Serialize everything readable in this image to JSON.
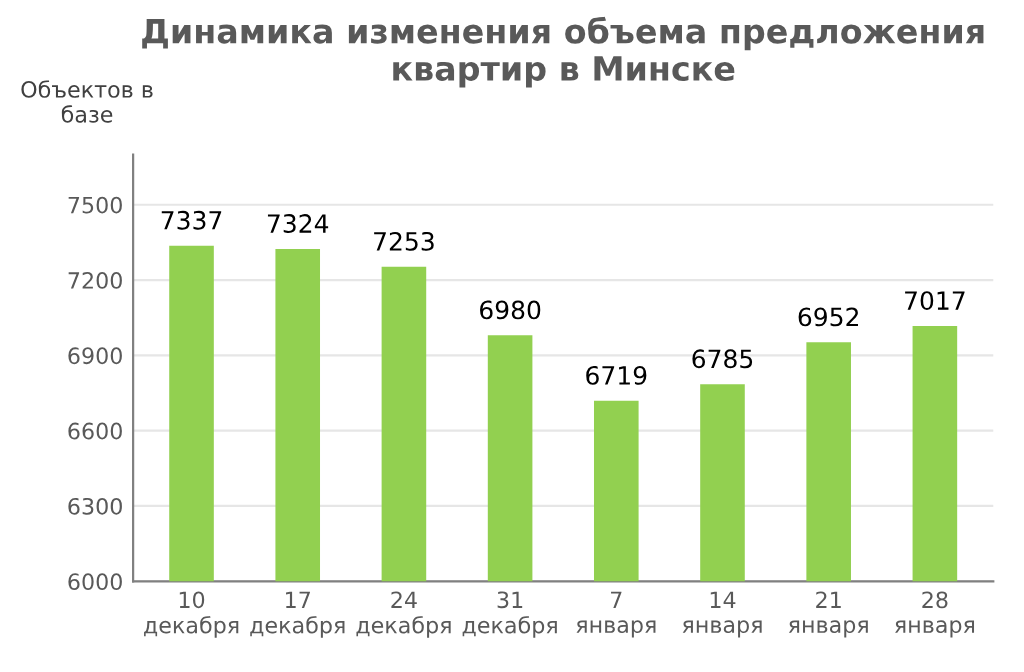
{
  "chart_data": {
    "type": "bar",
    "title": "Динамика изменения объема предложения\nквартир в Минске",
    "ylabel": "Объектов в\nбазе",
    "categories": [
      "10\nдекабря",
      "17\nдекабря",
      "24\nдекабря",
      "31\nдекабря",
      "7\nянваря",
      "14\nянваря",
      "21\nянваря",
      "28\nянваря"
    ],
    "values": [
      7337,
      7324,
      7253,
      6980,
      6719,
      6785,
      6952,
      7017
    ],
    "color": "#92d050",
    "ylim": [
      6000,
      7700
    ],
    "yticks": [
      6000,
      6300,
      6600,
      6900,
      7200,
      7500
    ],
    "grid": "y",
    "data_labels": true
  }
}
